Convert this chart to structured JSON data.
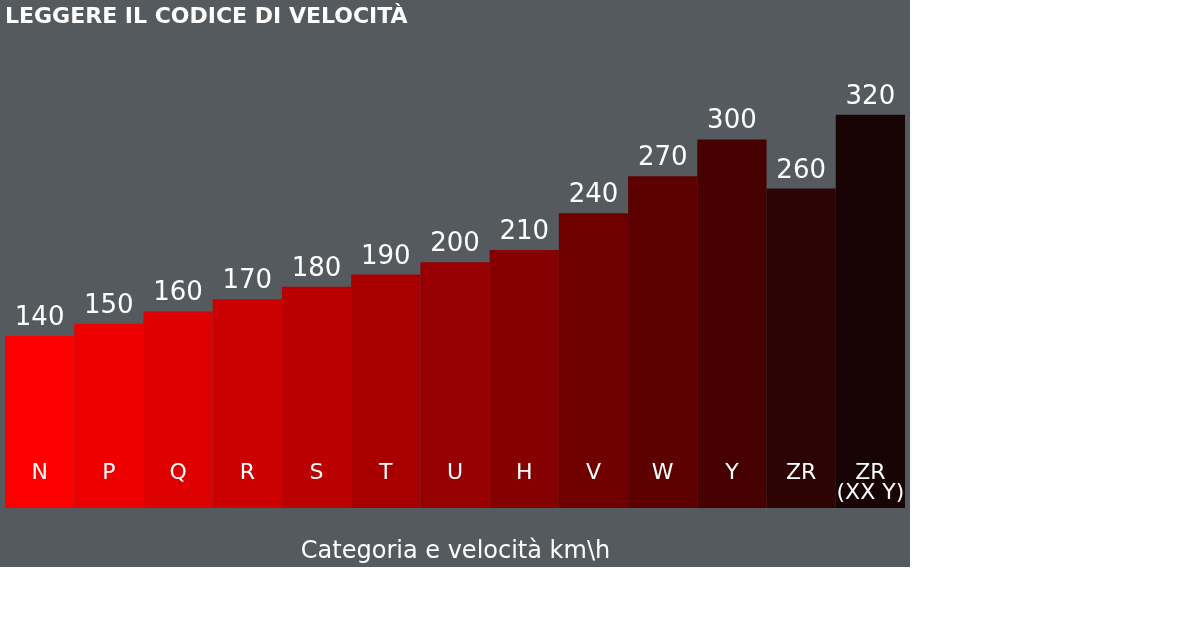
{
  "chart_data": {
    "type": "bar",
    "title": "LEGGERE IL CODICE DI VELOCITÀ",
    "xlabel": "Categoria e velocità km\\h",
    "categories": [
      "N",
      "P",
      "Q",
      "R",
      "S",
      "T",
      "U",
      "H",
      "V",
      "W",
      "Y",
      "ZR",
      "ZR\n(XX Y)"
    ],
    "values": [
      140,
      150,
      160,
      170,
      180,
      190,
      200,
      210,
      240,
      270,
      300,
      260,
      320
    ],
    "colors": [
      "#fc0000",
      "#ec0000",
      "#dc0000",
      "#cb0000",
      "#ba0000",
      "#a80000",
      "#970000",
      "#850000",
      "#700000",
      "#5c0000",
      "#470000",
      "#2c0404",
      "#180404"
    ],
    "data_labels": true,
    "tick_labels": "x"
  }
}
